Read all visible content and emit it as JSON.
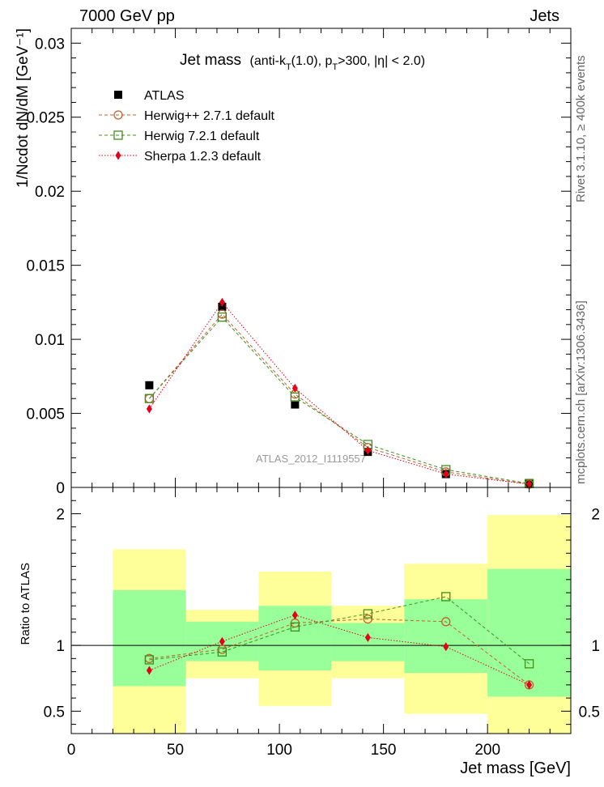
{
  "header": {
    "left": "7000 GeV pp",
    "right": "Jets",
    "title_main": "Jet mass",
    "title_sub": "(anti-k",
    "title_sub_T": "T",
    "title_sub_rest1": "(1.0), p",
    "title_sub_T2": "T",
    "title_sub_rest2": ">300, |η| < 2.0)",
    "side_rivet": "Rivet 3.1.10, ≥ 400k events",
    "side_mcplots": "mcplots.cern.ch [arXiv:1306.3436]",
    "watermark": "ATLAS_2012_I1119557"
  },
  "colors": {
    "atlas": "#000000",
    "herwigpp": "#c0622b",
    "herwig7": "#3f8f1f",
    "sherpa": "#e3001b",
    "band_inner": "#99ff99",
    "band_outer": "#ffff99"
  },
  "chart_data": [
    {
      "type": "scatter",
      "panel": "main",
      "ylabel": "1/Ncdot dN/dM [GeV⁻¹]",
      "ylim": [
        0,
        0.031
      ],
      "yticks": [
        {
          "v": 0,
          "label": "0"
        },
        {
          "v": 0.005,
          "label": "0.005"
        },
        {
          "v": 0.01,
          "label": "0.01"
        },
        {
          "v": 0.015,
          "label": "0.015"
        },
        {
          "v": 0.02,
          "label": "0.02"
        },
        {
          "v": 0.025,
          "label": "0.025"
        },
        {
          "v": 0.03,
          "label": "0.03"
        }
      ],
      "xlim": [
        0,
        240
      ],
      "legend_position": "top-left",
      "series": [
        {
          "name": "ATLAS",
          "key": "atlas",
          "marker": "square-filled",
          "x": [
            37.5,
            72.5,
            107.5,
            142.5,
            180,
            220
          ],
          "y": [
            0.0069,
            0.0122,
            0.0056,
            0.0024,
            0.0009,
            0.0003
          ]
        },
        {
          "name": "Herwig++ 2.7.1 default",
          "key": "herwigpp",
          "marker": "circle-open",
          "line": "dashed",
          "x": [
            37.5,
            72.5,
            107.5,
            142.5,
            180,
            220
          ],
          "y": [
            0.006,
            0.0117,
            0.0063,
            0.0027,
            0.00105,
            0.00022
          ]
        },
        {
          "name": "Herwig 7.2.1 default",
          "key": "herwig7",
          "marker": "square-open",
          "line": "dashed",
          "x": [
            37.5,
            72.5,
            107.5,
            142.5,
            180,
            220
          ],
          "y": [
            0.006,
            0.0115,
            0.0061,
            0.0029,
            0.0012,
            0.00026
          ]
        },
        {
          "name": "Sherpa 1.2.3 default",
          "key": "sherpa",
          "marker": "diamond-filled",
          "line": "dotted",
          "x": [
            37.5,
            72.5,
            107.5,
            142.5,
            180,
            220
          ],
          "y": [
            0.0053,
            0.0125,
            0.0067,
            0.0025,
            0.0009,
            0.00022
          ]
        }
      ]
    },
    {
      "type": "scatter",
      "panel": "ratio",
      "ylabel": "Ratio to ATLAS",
      "xlabel": "Jet mass [GeV]",
      "ylim": [
        0.33,
        2.2
      ],
      "xlim": [
        0,
        240
      ],
      "yticks": [
        {
          "v": 0.5,
          "label": "0.5"
        },
        {
          "v": 1,
          "label": "1"
        },
        {
          "v": 2,
          "label": "2"
        }
      ],
      "xticks": [
        {
          "v": 0,
          "label": "0"
        },
        {
          "v": 50,
          "label": "50"
        },
        {
          "v": 100,
          "label": "100"
        },
        {
          "v": 150,
          "label": "150"
        },
        {
          "v": 200,
          "label": "200"
        }
      ],
      "uncertainty_bands": [
        {
          "x0": 20,
          "x1": 55,
          "inner": [
            0.69,
            1.42
          ],
          "outer": [
            0.33,
            1.73
          ]
        },
        {
          "x0": 55,
          "x1": 90,
          "inner": [
            0.88,
            1.18
          ],
          "outer": [
            0.75,
            1.27
          ]
        },
        {
          "x0": 90,
          "x1": 125,
          "inner": [
            0.81,
            1.3
          ],
          "outer": [
            0.54,
            1.56
          ]
        },
        {
          "x0": 125,
          "x1": 160,
          "inner": [
            0.88,
            1.17
          ],
          "outer": [
            0.75,
            1.3
          ]
        },
        {
          "x0": 160,
          "x1": 200,
          "inner": [
            0.79,
            1.35
          ],
          "outer": [
            0.48,
            1.62
          ]
        },
        {
          "x0": 200,
          "x1": 240,
          "inner": [
            0.61,
            1.58
          ],
          "outer": [
            0.33,
            1.99
          ]
        }
      ],
      "series": [
        {
          "name": "Herwig++ 2.7.1 default",
          "key": "herwigpp",
          "marker": "circle-open",
          "line": "dashed",
          "x": [
            37.5,
            72.5,
            107.5,
            142.5,
            180,
            220
          ],
          "y": [
            0.9,
            0.97,
            1.17,
            1.2,
            1.18,
            0.7
          ]
        },
        {
          "name": "Herwig 7.2.1 default",
          "key": "herwig7",
          "marker": "square-open",
          "line": "dashed",
          "x": [
            37.5,
            72.5,
            107.5,
            142.5,
            180,
            220
          ],
          "y": [
            0.89,
            0.95,
            1.14,
            1.24,
            1.37,
            0.86
          ]
        },
        {
          "name": "Sherpa 1.2.3 default",
          "key": "sherpa",
          "marker": "diamond-filled",
          "line": "dotted",
          "x": [
            37.5,
            72.5,
            107.5,
            142.5,
            180,
            220
          ],
          "y": [
            0.81,
            1.03,
            1.23,
            1.06,
            0.99,
            0.7
          ]
        }
      ]
    }
  ]
}
